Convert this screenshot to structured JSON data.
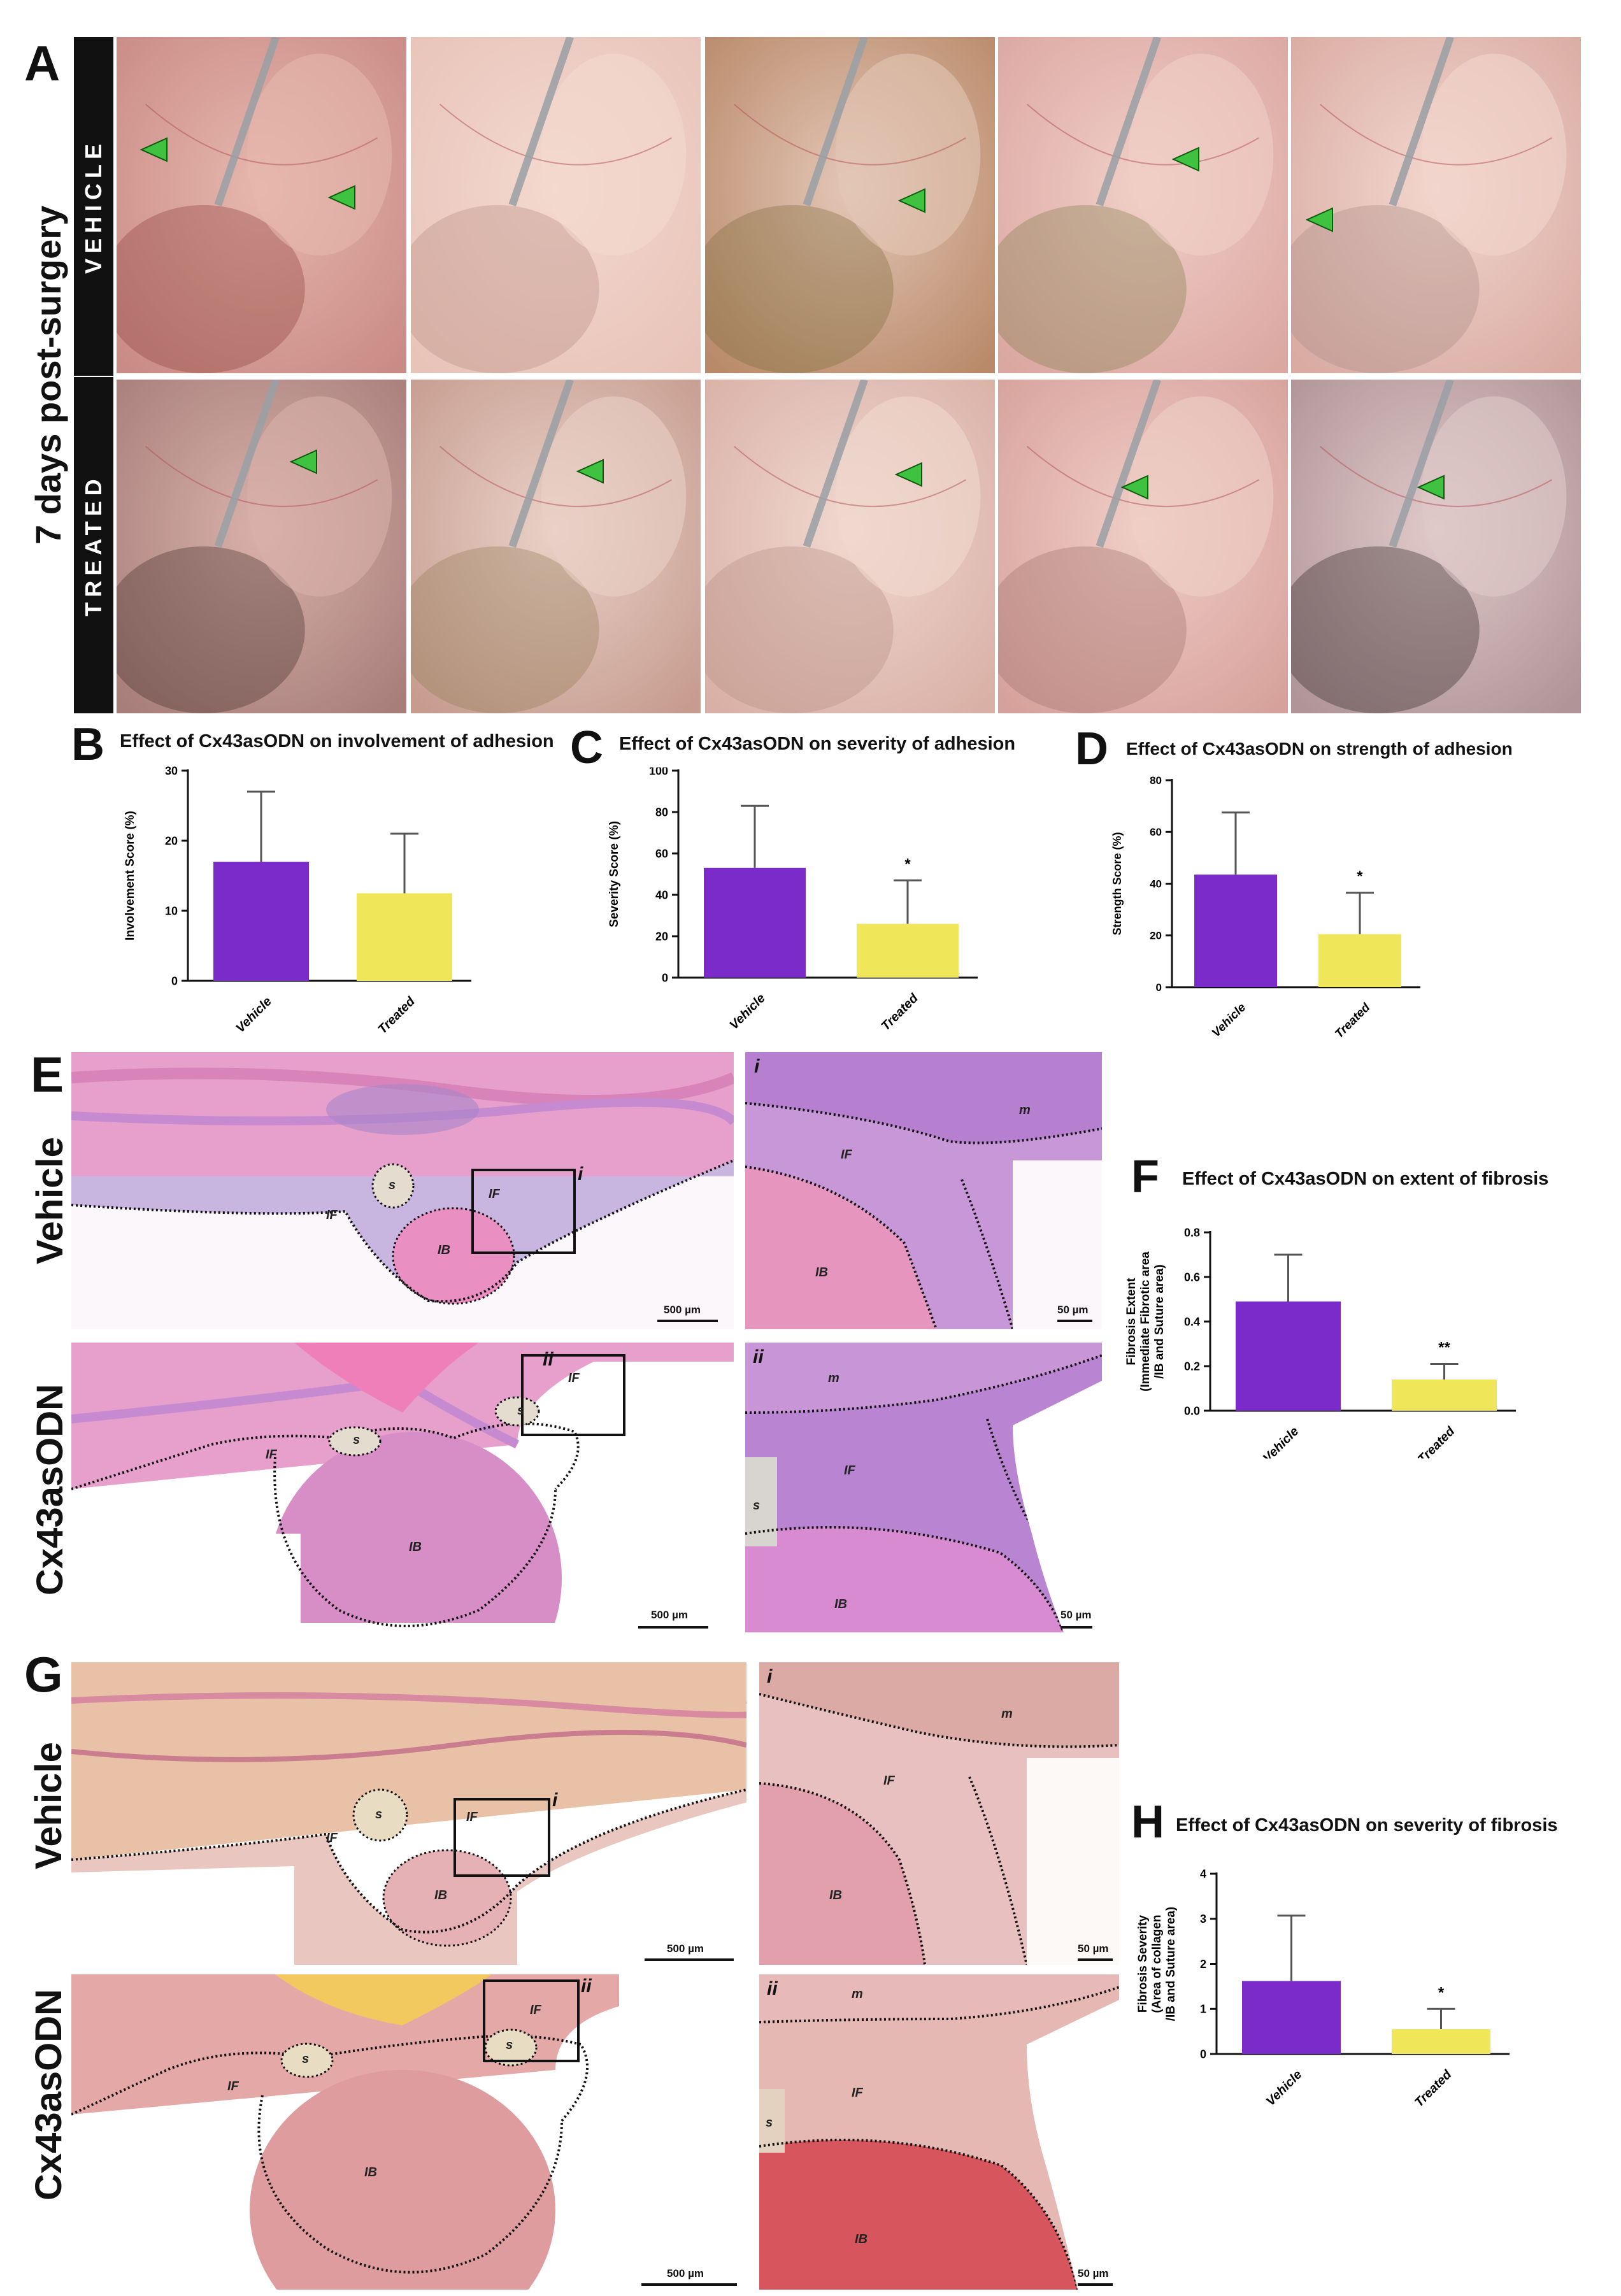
{
  "panels": {
    "A": "A",
    "B": "B",
    "C": "C",
    "D": "D",
    "E": "E",
    "F": "F",
    "G": "G",
    "H": "H"
  },
  "panelA": {
    "timepoint": "7 days post-surgery",
    "row_labels": [
      "VEHICLE",
      "TREATED"
    ]
  },
  "histology": {
    "row_labels_E": [
      "Vehicle",
      "Cx43asODN"
    ],
    "row_labels_G": [
      "Vehicle",
      "Cx43asODN"
    ],
    "region_IF": "IF",
    "region_IB": "IB",
    "region_s": "s",
    "region_m": "m",
    "inset_i": "i",
    "inset_ii": "ii",
    "scale_low": "500 µm",
    "scale_high": "50 µm"
  },
  "colors": {
    "vehicle": "#7B2BC9",
    "treated": "#F0E65A",
    "marker": "#3FC23F"
  },
  "chart_data": [
    {
      "id": "B",
      "type": "bar",
      "title": "Effect of Cx43asODN on involvement of adhesion",
      "ylabel": "Involvement Score (%)",
      "categories": [
        "Vehicle",
        "Treated"
      ],
      "values": [
        17,
        12.5
      ],
      "errors": [
        10,
        8.5
      ],
      "ylim": [
        0,
        30
      ],
      "yticks": [
        0,
        10,
        20,
        30
      ],
      "significance": [
        "",
        ""
      ]
    },
    {
      "id": "C",
      "type": "bar",
      "title": "Effect of Cx43asODN on severity of adhesion",
      "ylabel": "Severity Score (%)",
      "categories": [
        "Vehicle",
        "Treated"
      ],
      "values": [
        53,
        26
      ],
      "errors": [
        30,
        21
      ],
      "ylim": [
        0,
        100
      ],
      "yticks": [
        0,
        20,
        40,
        60,
        80,
        100
      ],
      "significance": [
        "",
        "*"
      ]
    },
    {
      "id": "D",
      "type": "bar",
      "title": "Effect of Cx43asODN on strength of adhesion",
      "ylabel": "Strength Score (%)",
      "categories": [
        "Vehicle",
        "Treated"
      ],
      "values": [
        43.5,
        20.5
      ],
      "errors": [
        24,
        16
      ],
      "ylim": [
        0,
        80
      ],
      "yticks": [
        0,
        20,
        40,
        60,
        80
      ],
      "significance": [
        "",
        "*"
      ]
    },
    {
      "id": "F",
      "type": "bar",
      "title": "Effect of Cx43asODN on extent of fibrosis",
      "ylabel": [
        "Fibrosis Extent",
        "(Immediate Fibrotic area",
        "/IB and Suture area)"
      ],
      "categories": [
        "Vehicle",
        "Treated"
      ],
      "values": [
        0.49,
        0.14
      ],
      "errors": [
        0.21,
        0.07
      ],
      "ylim": [
        0,
        0.8
      ],
      "yticks": [
        0.0,
        0.2,
        0.4,
        0.6,
        0.8
      ],
      "ytick_labels": [
        "0.0",
        "0.2",
        "0.4",
        "0.6",
        "0.8"
      ],
      "significance": [
        "",
        "**"
      ]
    },
    {
      "id": "H",
      "type": "bar",
      "title": "Effect of Cx43asODN on severity of fibrosis",
      "ylabel": [
        "Fibrosis Severity",
        "(Area of collagen",
        "/IB and Suture area)"
      ],
      "categories": [
        "Vehicle",
        "Treated"
      ],
      "values": [
        1.62,
        0.55
      ],
      "errors": [
        1.45,
        0.45
      ],
      "ylim": [
        0,
        4
      ],
      "yticks": [
        0,
        1,
        2,
        3,
        4
      ],
      "significance": [
        "",
        "*"
      ]
    }
  ]
}
